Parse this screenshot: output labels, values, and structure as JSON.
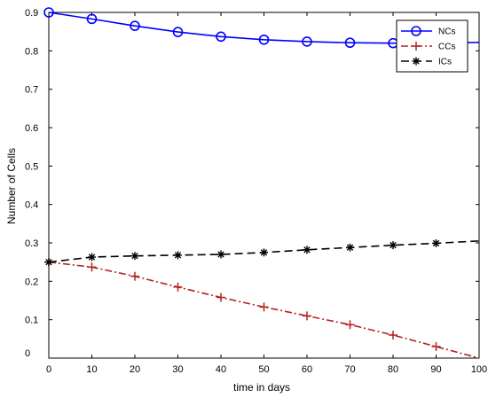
{
  "chart_data": {
    "type": "line",
    "xlabel": "time in days",
    "ylabel": "Number of Cells",
    "xlim": [
      0,
      100
    ],
    "ylim": [
      0,
      0.9
    ],
    "xticks": [
      0,
      10,
      20,
      30,
      40,
      50,
      60,
      70,
      80,
      90,
      100
    ],
    "yticks": [
      0,
      0.1,
      0.2,
      0.3,
      0.4,
      0.5,
      0.6,
      0.7,
      0.8,
      0.9
    ],
    "xtick_labels": [
      "0",
      "10",
      "20",
      "30",
      "40",
      "50",
      "60",
      "70",
      "80",
      "90",
      "100"
    ],
    "ytick_labels": [
      "0",
      "0.1",
      "0.2",
      "0.3",
      "0.4",
      "0.5",
      "0.6",
      "0.7",
      "0.8",
      "0.9"
    ],
    "grid": false,
    "legend_position": "top-right",
    "x": [
      0,
      10,
      20,
      30,
      40,
      50,
      60,
      70,
      80,
      90,
      100
    ],
    "series": [
      {
        "name": "NCs",
        "color": "#0000ff",
        "line_style": "solid",
        "marker": "circle",
        "values": [
          0.9,
          0.883,
          0.865,
          0.849,
          0.837,
          0.829,
          0.824,
          0.821,
          0.82,
          0.82,
          0.822
        ]
      },
      {
        "name": "CCs",
        "color": "#b22222",
        "line_style": "dash-dot",
        "marker": "plus",
        "values": [
          0.25,
          0.237,
          0.213,
          0.185,
          0.158,
          0.133,
          0.11,
          0.087,
          0.06,
          0.03,
          0.0
        ]
      },
      {
        "name": "ICs",
        "color": "#000000",
        "line_style": "dashed",
        "marker": "asterisk",
        "values": [
          0.25,
          0.263,
          0.266,
          0.268,
          0.27,
          0.275,
          0.282,
          0.288,
          0.294,
          0.299,
          0.305
        ]
      }
    ]
  }
}
